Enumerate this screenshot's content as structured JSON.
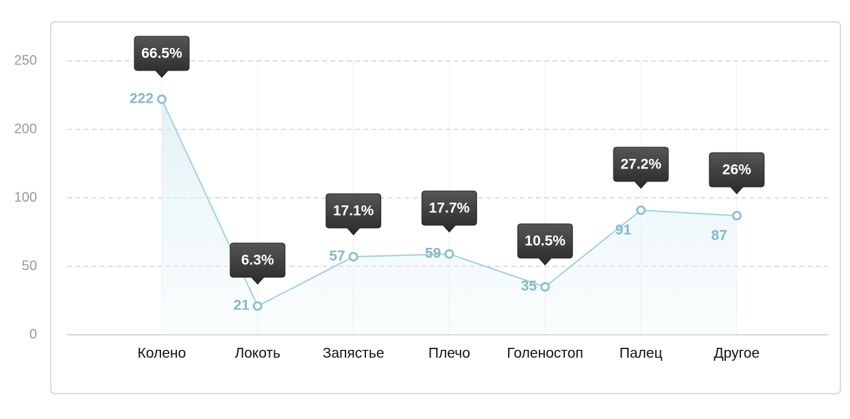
{
  "chart_data": {
    "type": "line",
    "categories": [
      "Колено",
      "Локоть",
      "Запястье",
      "Плечо",
      "Голеностоп",
      "Палец",
      "Другое"
    ],
    "values": [
      222,
      21,
      57,
      59,
      35,
      91,
      87
    ],
    "color": "#9dd3df",
    "ylim": [
      0,
      250
    ],
    "yticks": [
      0,
      50,
      100,
      200,
      250
    ],
    "grid": true,
    "tooltips": {
      "values": [
        66.5,
        6.3,
        17.1,
        17.7,
        10.5,
        27.2,
        26
      ],
      "value_labels": [
        "66.5%",
        "6.3%",
        "17.1%",
        "17.7%",
        "10.5%",
        "27.2%",
        "26%"
      ]
    }
  }
}
